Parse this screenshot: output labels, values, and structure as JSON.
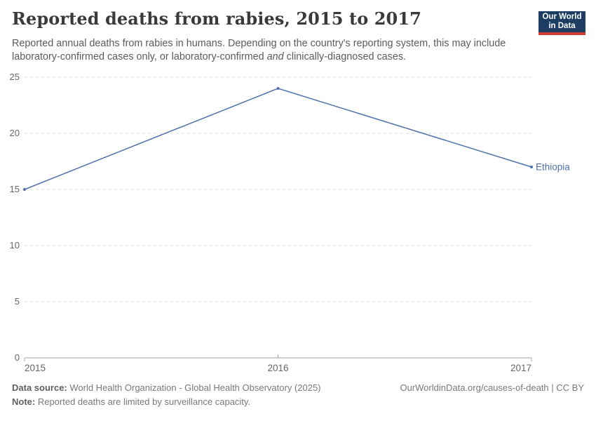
{
  "header": {
    "title": "Reported deaths from rabies, 2015 to 2017",
    "subtitle_part1": "Reported annual deaths from rabies in humans. Depending on the country's reporting system, this may include laboratory-confirmed cases only, or laboratory-confirmed ",
    "subtitle_italic": "and",
    "subtitle_part2": " clinically-diagnosed cases.",
    "logo_line1": "Our World",
    "logo_line2": "in Data"
  },
  "chart_data": {
    "type": "line",
    "title": "Reported deaths from rabies, 2015 to 2017",
    "x": [
      "2015",
      "2016",
      "2017"
    ],
    "series": [
      {
        "name": "Ethiopia",
        "values": [
          15,
          24,
          17
        ]
      }
    ],
    "ylim": [
      0,
      25
    ],
    "yticks": [
      0,
      5,
      10,
      15,
      20,
      25
    ],
    "xlabel": "",
    "ylabel": "",
    "grid": "horizontal-dashed",
    "legend_position": "line-end-label"
  },
  "footer": {
    "source_label": "Data source:",
    "source_text": " World Health Organization - Global Health Observatory (2025)",
    "note_label": "Note:",
    "note_text": " Reported deaths are limited by surveillance capacity.",
    "citation": "OurWorldinData.org/causes-of-death | CC BY"
  },
  "colors": {
    "line": "#4e72a9",
    "grid": "#dcdcdc",
    "axis": "#a3a3a3",
    "tick_text": "#666666",
    "logo_navy": "#1d3d63",
    "logo_red": "#cf3b31"
  }
}
